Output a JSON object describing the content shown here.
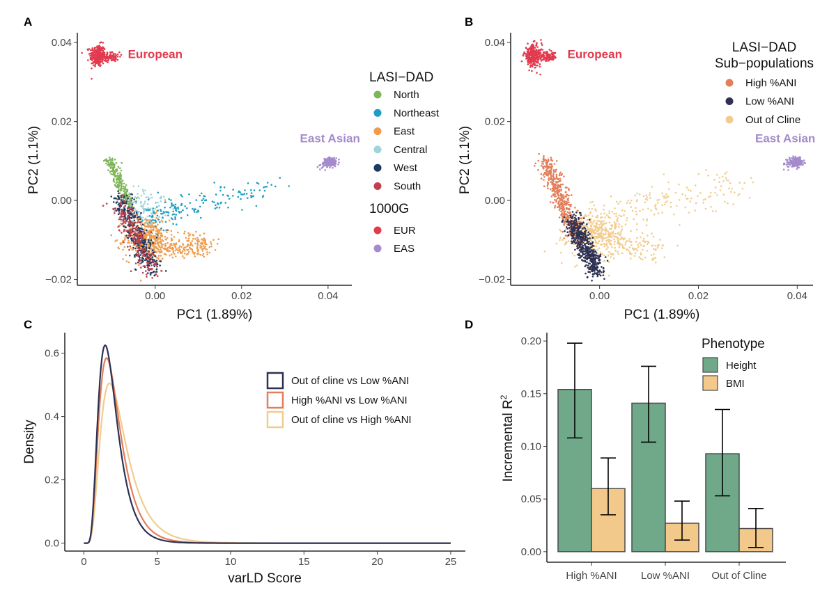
{
  "colors": {
    "north": "#7fb65a",
    "northeast": "#1e9ec2",
    "east": "#ef9c4c",
    "central": "#9ed4dc",
    "west": "#1f3a5f",
    "south": "#c0404f",
    "eur": "#e23a4e",
    "eas": "#a58bcb",
    "high_ani": "#e27e5a",
    "low_ani": "#2e3152",
    "out_cline": "#f2cc8c",
    "height": "#6fa98a",
    "bmi": "#f2c98a"
  },
  "chart_data": [
    {
      "id": "A",
      "type": "scatter",
      "panel_label": "A",
      "xlabel": "PC1 (1.89%)",
      "ylabel": "PC2 (1.1%)",
      "xlim": [
        -0.018,
        0.0455
      ],
      "ylim": [
        -0.0215,
        0.0425
      ],
      "xticks": [
        0.0,
        0.02,
        0.04
      ],
      "xtick_labels": [
        "0.00",
        "0.02",
        "0.04"
      ],
      "yticks": [
        -0.02,
        0.0,
        0.02,
        0.04
      ],
      "ytick_labels": [
        "−0.02",
        "0.00",
        "0.02",
        "0.04"
      ],
      "annotations": [
        {
          "text": "European",
          "x": -0.0063,
          "y": 0.0361,
          "color": "eur"
        },
        {
          "text": "East Asian",
          "x": 0.0335,
          "y": 0.0147,
          "color": "eas"
        }
      ],
      "legend": {
        "groups": [
          {
            "title": "LASI−DAD",
            "entries": [
              {
                "label": "North",
                "color": "north"
              },
              {
                "label": "Northeast",
                "color": "northeast"
              },
              {
                "label": "East",
                "color": "east"
              },
              {
                "label": "Central",
                "color": "central"
              },
              {
                "label": "West",
                "color": "west"
              },
              {
                "label": "South",
                "color": "south"
              }
            ]
          },
          {
            "title": "1000G",
            "entries": [
              {
                "label": "EUR",
                "color": "eur"
              },
              {
                "label": "EAS",
                "color": "eas"
              }
            ]
          }
        ]
      },
      "clusters": [
        {
          "color": "eur",
          "n": 260,
          "shape": "blob",
          "cx": -0.0133,
          "cy": 0.0367,
          "sx": 0.0009,
          "sy": 0.0014
        },
        {
          "color": "eur",
          "n": 90,
          "shape": "blob",
          "cx": -0.0102,
          "cy": 0.0364,
          "sx": 0.001,
          "sy": 0.0006
        },
        {
          "color": "eas",
          "n": 260,
          "shape": "blob",
          "cx": 0.0404,
          "cy": 0.0097,
          "sx": 0.0007,
          "sy": 0.0005
        },
        {
          "color": "eas",
          "n": 8,
          "shape": "blob",
          "cx": 0.0386,
          "cy": 0.0085,
          "sx": 0.0005,
          "sy": 0.0008
        },
        {
          "color": "east",
          "n": 420,
          "shape": "blob",
          "cx": -0.002,
          "cy": -0.0095,
          "sx": 0.0026,
          "sy": 0.0028
        },
        {
          "color": "east",
          "n": 160,
          "shape": "line",
          "x0": -0.001,
          "y0": -0.012,
          "x1": 0.012,
          "y1": -0.0125,
          "w": 0.0012
        },
        {
          "color": "east",
          "n": 50,
          "shape": "line",
          "x0": 0.006,
          "y0": -0.009,
          "x1": 0.014,
          "y1": -0.011,
          "w": 0.001
        },
        {
          "color": "north",
          "n": 260,
          "shape": "line",
          "x0": -0.0105,
          "y0": 0.0102,
          "x1": -0.0055,
          "y1": -0.002,
          "w": 0.0006
        },
        {
          "color": "central",
          "n": 110,
          "shape": "blob",
          "cx": -0.0025,
          "cy": -0.002,
          "sx": 0.0028,
          "sy": 0.0022
        },
        {
          "color": "northeast",
          "n": 110,
          "shape": "line",
          "x0": -0.003,
          "y0": -0.004,
          "x1": 0.028,
          "y1": 0.0035,
          "w": 0.0018
        },
        {
          "color": "northeast",
          "n": 60,
          "shape": "blob",
          "cx": 0.0035,
          "cy": -0.0035,
          "sx": 0.0025,
          "sy": 0.002
        },
        {
          "color": "west",
          "n": 360,
          "shape": "line",
          "x0": -0.008,
          "y0": 0.001,
          "x1": -0.0005,
          "y1": -0.0175,
          "w": 0.0012
        },
        {
          "color": "south",
          "n": 220,
          "shape": "line",
          "x0": -0.0085,
          "y0": -0.0005,
          "x1": -0.0005,
          "y1": -0.0185,
          "w": 0.0013
        }
      ]
    },
    {
      "id": "B",
      "type": "scatter",
      "panel_label": "B",
      "xlabel": "PC1 (1.89%)",
      "ylabel": "PC2 (1.1%)",
      "xlim": [
        -0.018,
        0.0432
      ],
      "ylim": [
        -0.0215,
        0.0425
      ],
      "xticks": [
        0.0,
        0.02,
        0.04
      ],
      "xtick_labels": [
        "0.00",
        "0.02",
        "0.04"
      ],
      "yticks": [
        -0.02,
        0.0,
        0.02,
        0.04
      ],
      "ytick_labels": [
        "−0.02",
        "0.00",
        "0.02",
        "0.04"
      ],
      "annotations": [
        {
          "text": "European",
          "x": -0.0065,
          "y": 0.0361,
          "color": "eur"
        },
        {
          "text": "East Asian",
          "x": 0.0315,
          "y": 0.0147,
          "color": "eas"
        }
      ],
      "legend": {
        "groups": [
          {
            "title": "LASI−DAD",
            "title2": "Sub−populations",
            "entries": [
              {
                "label": "High %ANI",
                "color": "high_ani"
              },
              {
                "label": "Low %ANI",
                "color": "low_ani"
              },
              {
                "label": "Out of Cline",
                "color": "out_cline"
              }
            ]
          }
        ]
      },
      "clusters": [
        {
          "color": "eur",
          "n": 260,
          "shape": "blob",
          "cx": -0.0135,
          "cy": 0.0367,
          "sx": 0.0009,
          "sy": 0.0014
        },
        {
          "color": "eur",
          "n": 90,
          "shape": "blob",
          "cx": -0.0105,
          "cy": 0.0364,
          "sx": 0.001,
          "sy": 0.0006
        },
        {
          "color": "eas",
          "n": 260,
          "shape": "blob",
          "cx": 0.0398,
          "cy": 0.0097,
          "sx": 0.0007,
          "sy": 0.0005
        },
        {
          "color": "eas",
          "n": 8,
          "shape": "blob",
          "cx": 0.038,
          "cy": 0.0085,
          "sx": 0.0005,
          "sy": 0.0008
        },
        {
          "color": "out_cline",
          "n": 420,
          "shape": "blob",
          "cx": -0.001,
          "cy": -0.0085,
          "sx": 0.0028,
          "sy": 0.003
        },
        {
          "color": "out_cline",
          "n": 160,
          "shape": "line",
          "x0": 0.0,
          "y0": -0.004,
          "x1": 0.028,
          "y1": 0.004,
          "w": 0.0025
        },
        {
          "color": "out_cline",
          "n": 120,
          "shape": "line",
          "x0": 0.0,
          "y0": -0.01,
          "x1": 0.013,
          "y1": -0.013,
          "w": 0.0018
        },
        {
          "color": "high_ani",
          "n": 520,
          "shape": "line",
          "x0": -0.011,
          "y0": 0.0102,
          "x1": -0.004,
          "y1": -0.011,
          "w": 0.0009
        },
        {
          "color": "low_ani",
          "n": 520,
          "shape": "line",
          "x0": -0.0055,
          "y0": -0.0045,
          "x1": -0.0005,
          "y1": -0.0185,
          "w": 0.001
        }
      ]
    },
    {
      "id": "C",
      "type": "line",
      "panel_label": "C",
      "xlabel": "varLD Score",
      "ylabel": "Density",
      "xlim": [
        -1.3,
        26.0
      ],
      "ylim": [
        -0.025,
        0.665
      ],
      "xticks": [
        0,
        5,
        10,
        15,
        20,
        25
      ],
      "xtick_labels": [
        "0",
        "5",
        "10",
        "15",
        "20",
        "25"
      ],
      "yticks": [
        0.0,
        0.2,
        0.4,
        0.6
      ],
      "ytick_labels": [
        "0.0",
        "0.2",
        "0.4",
        "0.6"
      ],
      "series": [
        {
          "name": "Out of cline vs Low %ANI",
          "color": "low_ani",
          "mode": 1.45,
          "peak": 0.625,
          "sigma": 0.45
        },
        {
          "name": "High %ANI vs Low %ANI",
          "color": "high_ani",
          "mode": 1.55,
          "peak": 0.585,
          "sigma": 0.47
        },
        {
          "name": "Out of cline vs High %ANI",
          "color": "out_cline",
          "mode": 1.75,
          "peak": 0.505,
          "sigma": 0.5
        }
      ]
    },
    {
      "id": "D",
      "type": "bar",
      "panel_label": "D",
      "xlabel": "",
      "ylabel": "Incremental R",
      "ylabel_sup": "2",
      "categories": [
        "High %ANI",
        "Low %ANI",
        "Out of Cline"
      ],
      "ylim": [
        -0.01,
        0.208
      ],
      "yticks": [
        0.0,
        0.05,
        0.1,
        0.15,
        0.2
      ],
      "ytick_labels": [
        "0.00",
        "0.05",
        "0.10",
        "0.15",
        "0.20"
      ],
      "legend_title": "Phenotype",
      "series": [
        {
          "name": "Height",
          "color": "height",
          "values": [
            0.154,
            0.141,
            0.093
          ],
          "err_low": [
            0.108,
            0.104,
            0.053
          ],
          "err_high": [
            0.198,
            0.176,
            0.135
          ]
        },
        {
          "name": "BMI",
          "color": "bmi",
          "values": [
            0.06,
            0.027,
            0.022
          ],
          "err_low": [
            0.035,
            0.011,
            0.004
          ],
          "err_high": [
            0.089,
            0.048,
            0.041
          ]
        }
      ]
    }
  ]
}
